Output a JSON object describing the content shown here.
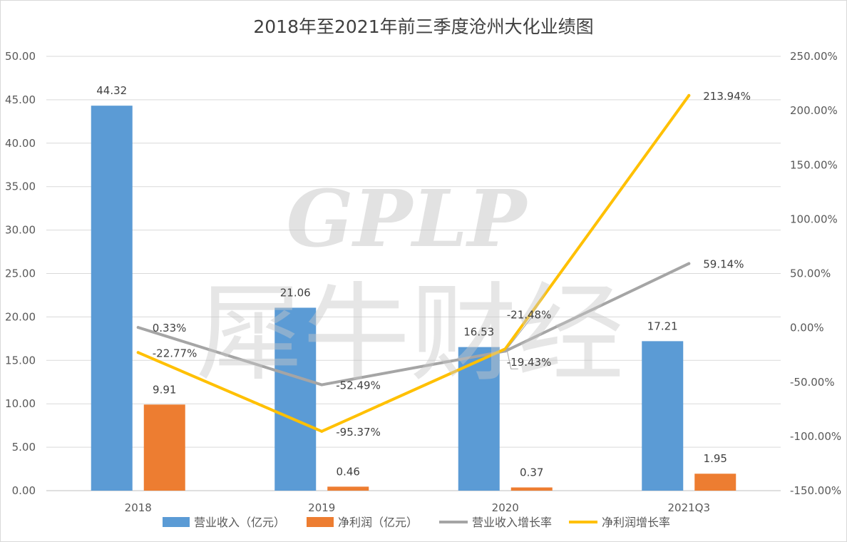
{
  "chart_data": {
    "type": "bar+line",
    "title": "2018年至2021年前三季度沧州大化业绩图",
    "categories": [
      "2018",
      "2019",
      "2020",
      "2021Q3"
    ],
    "left_axis": {
      "ylim": [
        0,
        50
      ],
      "ticks": [
        "0.00",
        "5.00",
        "10.00",
        "15.00",
        "20.00",
        "25.00",
        "30.00",
        "35.00",
        "40.00",
        "45.00",
        "50.00"
      ]
    },
    "right_axis": {
      "ylim": [
        -150,
        250
      ],
      "ticks": [
        "-150.00%",
        "-100.00%",
        "-50.00%",
        "0.00%",
        "50.00%",
        "100.00%",
        "150.00%",
        "200.00%",
        "250.00%"
      ]
    },
    "grid": true,
    "legend_position": "bottom",
    "series": [
      {
        "name": "营业收入（亿元）",
        "type": "bar",
        "axis": "left",
        "color": "#5b9bd5",
        "values": [
          44.32,
          21.06,
          16.53,
          17.21
        ],
        "labels": [
          "44.32",
          "21.06",
          "16.53",
          "17.21"
        ]
      },
      {
        "name": "净利润（亿元）",
        "type": "bar",
        "axis": "left",
        "color": "#ed7d31",
        "values": [
          9.91,
          0.46,
          0.37,
          1.95
        ],
        "labels": [
          "9.91",
          "0.46",
          "0.37",
          "1.95"
        ]
      },
      {
        "name": "营业收入增长率",
        "type": "line",
        "axis": "right",
        "color": "#a5a5a5",
        "values": [
          0.33,
          -52.49,
          -21.48,
          59.14
        ],
        "labels": [
          "0.33%",
          "-52.49%",
          "-21.48%",
          "59.14%"
        ]
      },
      {
        "name": "净利润增长率",
        "type": "line",
        "axis": "right",
        "color": "#ffc000",
        "values": [
          -22.77,
          -95.37,
          -19.43,
          213.94
        ],
        "labels": [
          "-22.77%",
          "-95.37%",
          "-19.43%",
          "213.94%"
        ]
      }
    ]
  },
  "watermark": {
    "latin": "GPLP",
    "chinese": "犀牛财经"
  }
}
